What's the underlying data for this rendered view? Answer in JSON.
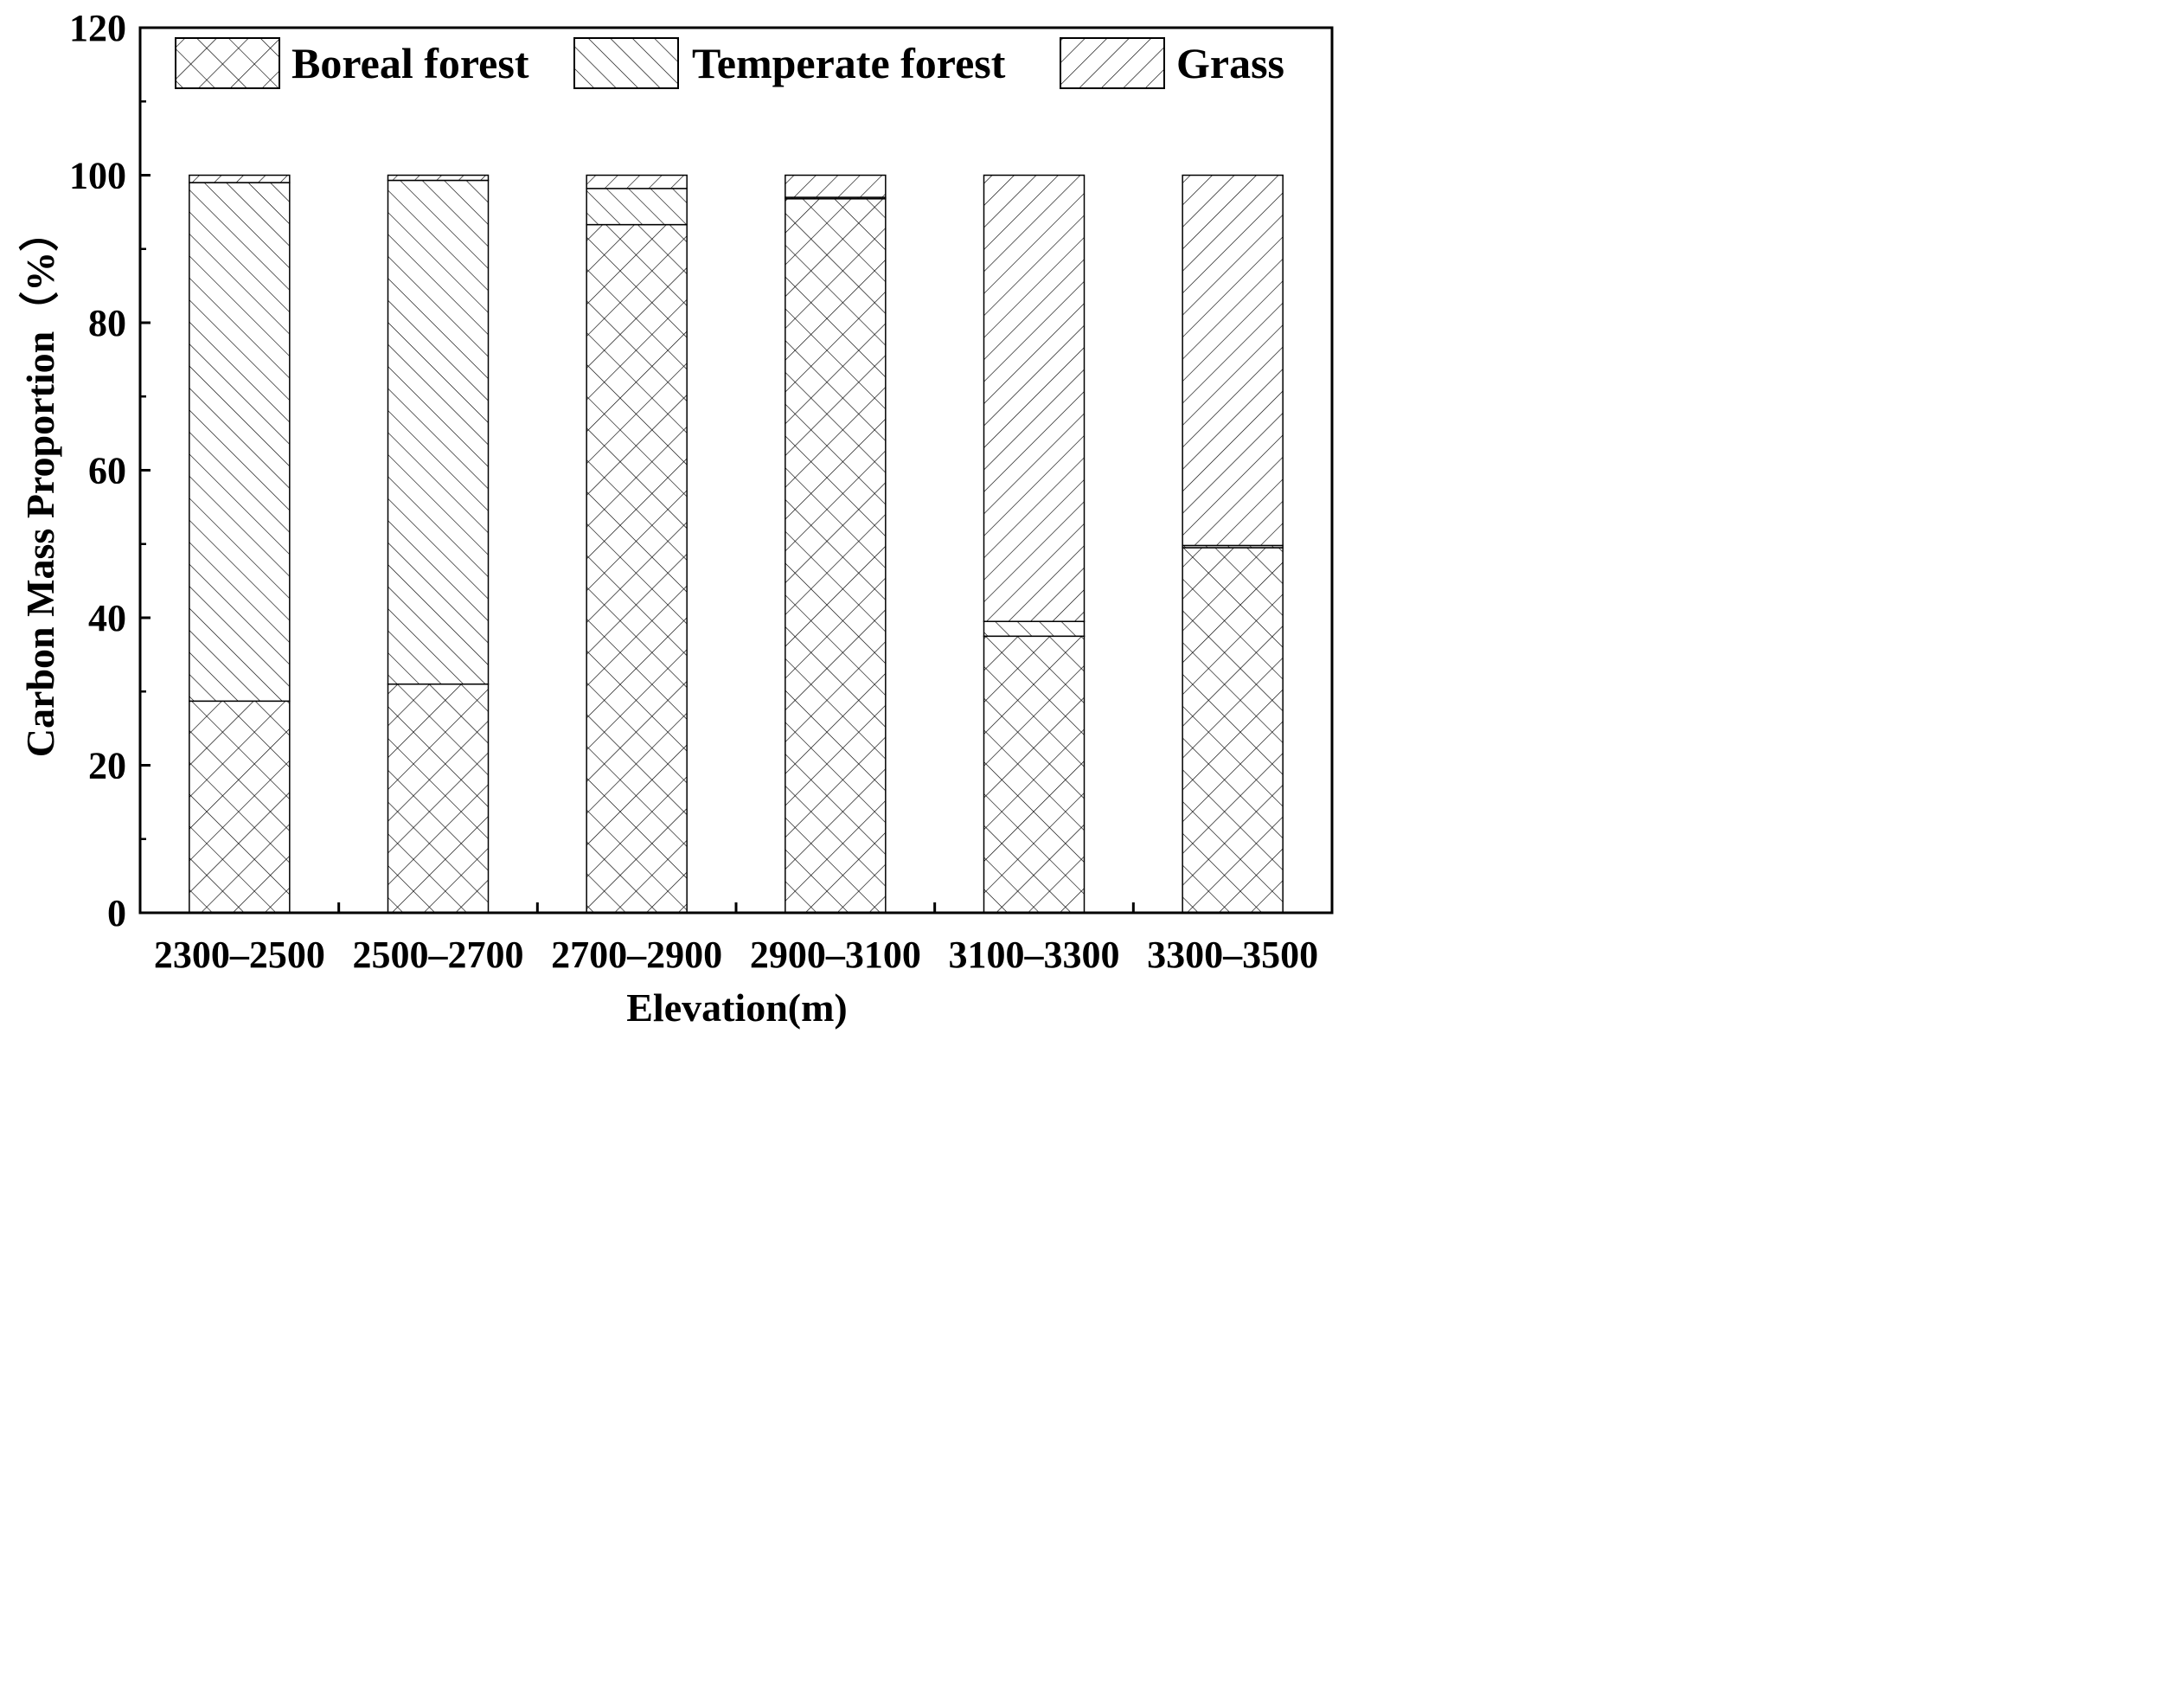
{
  "chart_data": {
    "type": "bar",
    "stacked": true,
    "title": "",
    "xlabel": "Elevation(m)",
    "ylabel": "Carbon Mass Proportion（%）",
    "ylim": [
      0,
      120
    ],
    "yticks": [
      0,
      20,
      40,
      60,
      80,
      100,
      120
    ],
    "categories": [
      "2300–2500",
      "2500–2700",
      "2700–2900",
      "2900–3100",
      "3100–3300",
      "3300–3500"
    ],
    "series": [
      {
        "name": "Boreal forest",
        "pattern": "crosshatch",
        "values": [
          28.7,
          31.0,
          93.3,
          96.8,
          37.5,
          49.5
        ]
      },
      {
        "name": "Temperate forest",
        "pattern": "forward-diagonal",
        "values": [
          70.3,
          68.3,
          4.9,
          0.2,
          2.0,
          0.3
        ]
      },
      {
        "name": "Grass",
        "pattern": "backward-diagonal",
        "values": [
          1.0,
          0.7,
          1.8,
          3.0,
          60.5,
          50.2
        ]
      }
    ],
    "legend": {
      "position": "top",
      "labels": [
        "Boreal forest",
        "Temperate forest",
        "Grass"
      ]
    },
    "grid": false,
    "colors": {
      "stroke": "#000000",
      "fill": "#ffffff"
    }
  }
}
